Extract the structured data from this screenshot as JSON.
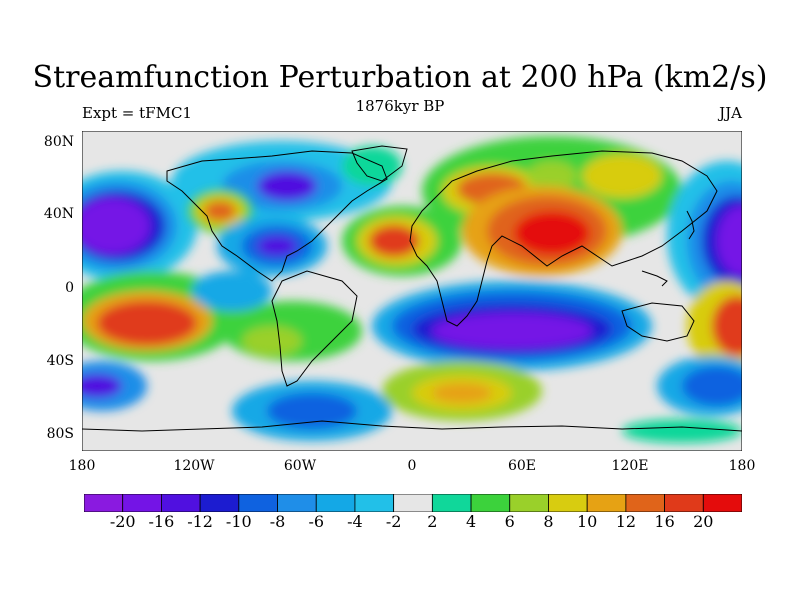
{
  "title": "Streamfunction Perturbation at 200 hPa (km2/s)",
  "subtitle_left": "Expt = tFMC1",
  "subtitle_center": "1876kyr BP",
  "subtitle_right": "JJA",
  "lat_labels": [
    "80N",
    "40N",
    "0",
    "40S",
    "80S"
  ],
  "lon_labels": [
    "180",
    "120W",
    "60W",
    "0",
    "60E",
    "120E",
    "180"
  ],
  "colorbar": {
    "labels": [
      "-20",
      "-16",
      "-12",
      "-10",
      "-8",
      "-6",
      "-4",
      "-2",
      "2",
      "4",
      "6",
      "8",
      "10",
      "12",
      "16",
      "20"
    ],
    "colors": [
      "#8a1ae0",
      "#7414e6",
      "#5010e0",
      "#1c1cd0",
      "#0f62e0",
      "#1f8ee8",
      "#14a8e6",
      "#22c0e8",
      "#e6e6e6",
      "#10d79a",
      "#3cd23c",
      "#9ad02a",
      "#d8cc10",
      "#e6a214",
      "#e0641a",
      "#e03a1a",
      "#e40c0c"
    ]
  },
  "colors": {
    "background": "#e6e6e6",
    "coastline": "#000000"
  }
}
